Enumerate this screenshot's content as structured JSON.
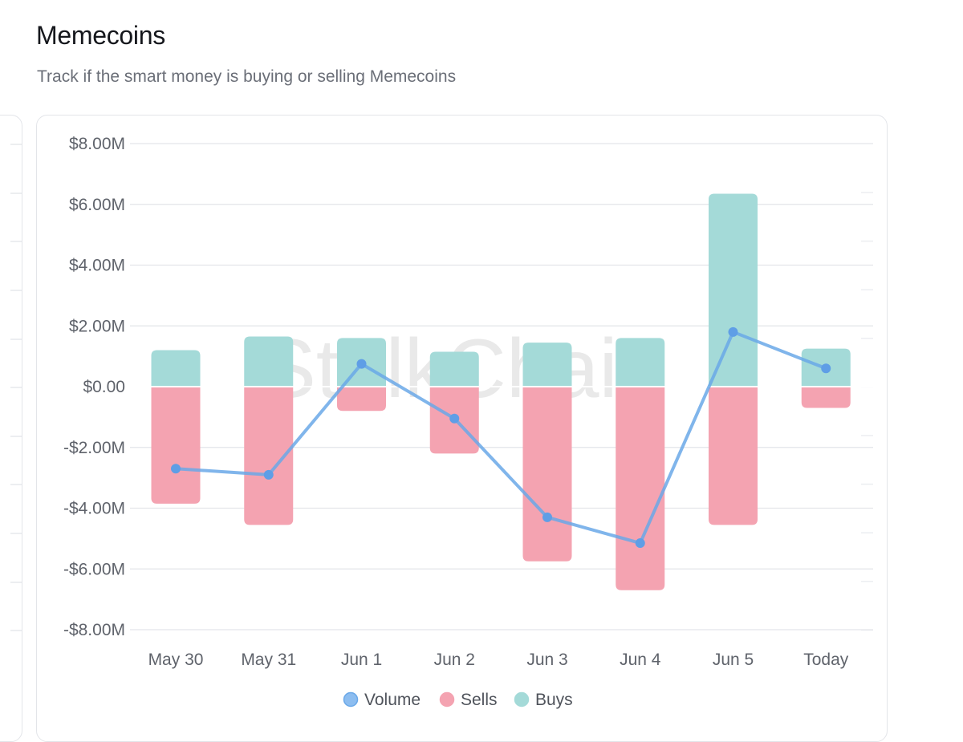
{
  "header": {
    "title": "Memecoins",
    "subtitle": "Track if the smart money is buying or selling Memecoins"
  },
  "watermark": "StalkChain",
  "chart_data": {
    "type": "bar",
    "stacked": true,
    "categories": [
      "May 30",
      "May 31",
      "Jun 1",
      "Jun 2",
      "Jun 3",
      "Jun 4",
      "Jun 5",
      "Today"
    ],
    "yticks": [
      "$8.00M",
      "$6.00M",
      "$4.00M",
      "$2.00M",
      "$0.00",
      "-$2.00M",
      "-$4.00M",
      "-$6.00M",
      "-$8.00M"
    ],
    "ylim": [
      -8,
      8
    ],
    "yunit": "$M",
    "grid": true,
    "legend_position": "bottom-center",
    "series": [
      {
        "name": "Volume",
        "kind": "line",
        "color": "#6aa8e8",
        "values": [
          -2.7,
          -2.9,
          0.75,
          -1.05,
          -4.3,
          -5.15,
          1.8,
          0.6
        ]
      },
      {
        "name": "Sells",
        "kind": "bar",
        "color": "#f4a3b1",
        "values": [
          -3.85,
          -4.55,
          -0.8,
          -2.2,
          -5.75,
          -6.7,
          -4.55,
          -0.7
        ]
      },
      {
        "name": "Buys",
        "kind": "bar",
        "color": "#a4dad8",
        "values": [
          1.2,
          1.65,
          1.6,
          1.15,
          1.45,
          1.6,
          6.35,
          1.25
        ]
      }
    ]
  }
}
